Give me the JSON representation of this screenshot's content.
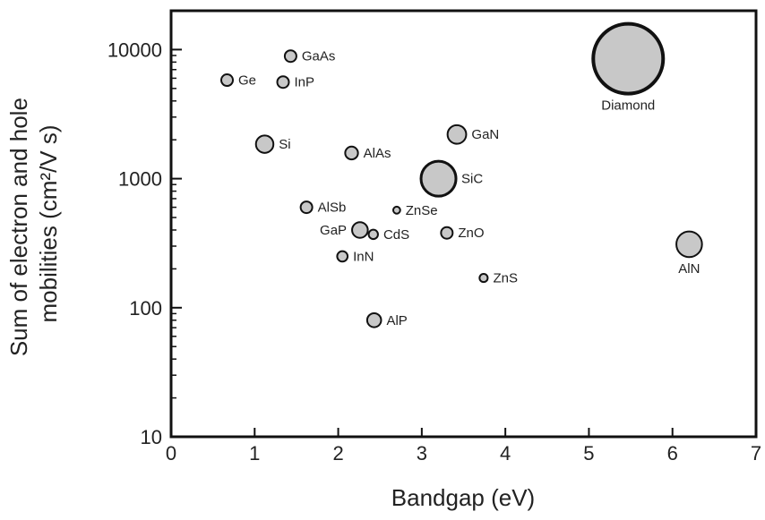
{
  "chart_data": {
    "type": "scatter",
    "title": "",
    "xlabel": "Bandgap (eV)",
    "ylabel": "Sum of electron and hole mobilities (cm²/V s)",
    "ylabel_lines": [
      "Sum of electron and hole",
      "mobilities (cm²/V s)"
    ],
    "xlim": [
      0,
      7
    ],
    "ylim": [
      10,
      20000
    ],
    "yscale": "log",
    "xticks": [
      0,
      1,
      2,
      3,
      4,
      5,
      6,
      7
    ],
    "xtick_labels": [
      "0",
      "1",
      "2",
      "3",
      "4",
      "5",
      "6",
      "7"
    ],
    "yticks": [
      10,
      100,
      1000,
      10000
    ],
    "ytick_labels": [
      "10",
      "100",
      "1000",
      "10000"
    ],
    "grid": false,
    "marker_fill": "#c8c8c8",
    "marker_stroke": "#111111",
    "points": [
      {
        "label": "GaAs",
        "x": 1.43,
        "y": 8900,
        "size": 1.0,
        "label_side": "right"
      },
      {
        "label": "Ge",
        "x": 0.67,
        "y": 5800,
        "size": 1.0,
        "label_side": "right"
      },
      {
        "label": "InP",
        "x": 1.34,
        "y": 5600,
        "size": 1.0,
        "label_side": "right"
      },
      {
        "label": "Si",
        "x": 1.12,
        "y": 1850,
        "size": 1.5,
        "label_side": "right"
      },
      {
        "label": "AlAs",
        "x": 2.16,
        "y": 1580,
        "size": 1.1,
        "label_side": "right"
      },
      {
        "label": "GaN",
        "x": 3.42,
        "y": 2200,
        "size": 1.6,
        "label_side": "right"
      },
      {
        "label": "SiC",
        "x": 3.2,
        "y": 1000,
        "size": 3.0,
        "label_side": "right"
      },
      {
        "label": "Diamond",
        "x": 5.47,
        "y": 8500,
        "size": 6.0,
        "label_side": "below"
      },
      {
        "label": "AlSb",
        "x": 1.62,
        "y": 600,
        "size": 1.0,
        "label_side": "right"
      },
      {
        "label": "ZnSe",
        "x": 2.7,
        "y": 570,
        "size": 0.6,
        "label_side": "right"
      },
      {
        "label": "GaP",
        "x": 2.26,
        "y": 400,
        "size": 1.35,
        "label_side": "left"
      },
      {
        "label": "CdS",
        "x": 2.42,
        "y": 370,
        "size": 0.8,
        "label_side": "right"
      },
      {
        "label": "ZnO",
        "x": 3.3,
        "y": 380,
        "size": 1.0,
        "label_side": "right"
      },
      {
        "label": "InN",
        "x": 2.05,
        "y": 250,
        "size": 0.9,
        "label_side": "right"
      },
      {
        "label": "AlN",
        "x": 6.2,
        "y": 310,
        "size": 2.2,
        "label_side": "below"
      },
      {
        "label": "ZnS",
        "x": 3.74,
        "y": 170,
        "size": 0.7,
        "label_side": "right"
      },
      {
        "label": "AlP",
        "x": 2.43,
        "y": 80,
        "size": 1.2,
        "label_side": "right"
      }
    ]
  }
}
